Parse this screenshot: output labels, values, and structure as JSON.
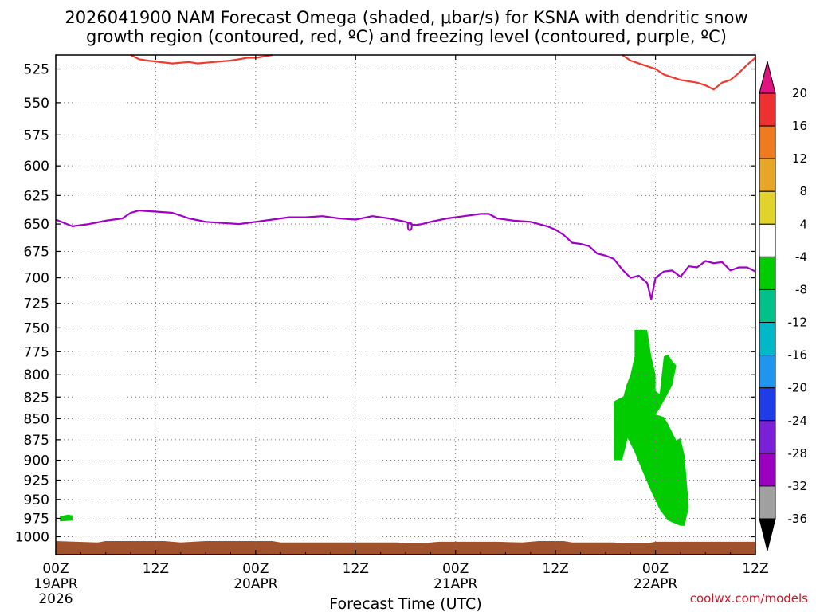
{
  "title_line1": "2026041900 NAM Forecast Omega (shaded, μbar/s) for KSNA with dendritic snow",
  "title_line2": "growth region (contoured, red, ºC) and freezing level (contoured, purple, ºC)",
  "credit": "coolwx.com/models",
  "chart_data": {
    "type": "heatmap",
    "xlabel": "Forecast Time (UTC)",
    "x_ticks": [
      {
        "hour": 0,
        "lines": [
          "00Z",
          "19APR",
          "2026"
        ]
      },
      {
        "hour": 12,
        "lines": [
          "12Z"
        ]
      },
      {
        "hour": 24,
        "lines": [
          "00Z",
          "20APR"
        ]
      },
      {
        "hour": 36,
        "lines": [
          "12Z"
        ]
      },
      {
        "hour": 48,
        "lines": [
          "00Z",
          "21APR"
        ]
      },
      {
        "hour": 60,
        "lines": [
          "12Z"
        ]
      },
      {
        "hour": 72,
        "lines": [
          "00Z",
          "22APR"
        ]
      },
      {
        "hour": 84,
        "lines": [
          "12Z"
        ]
      }
    ],
    "xlim": [
      0,
      84
    ],
    "ylabel": "",
    "y_ticks": [
      525,
      550,
      575,
      600,
      625,
      650,
      675,
      700,
      725,
      750,
      775,
      800,
      825,
      850,
      875,
      900,
      925,
      950,
      975,
      1000
    ],
    "ylim_top": 515,
    "ylim_bottom": 1025,
    "colorbar": {
      "labels": [
        20,
        16,
        12,
        8,
        4,
        -4,
        -8,
        -12,
        -16,
        -20,
        -24,
        -28,
        -32,
        -36
      ],
      "colors": [
        "#ee3030",
        "#f07a1e",
        "#e8a626",
        "#e2d32a",
        "#ffffff",
        "#00cc00",
        "#00c288",
        "#00b8c8",
        "#1e96f0",
        "#1e3ce8",
        "#7a20d8",
        "#9a00c0",
        "#a0a0a0"
      ],
      "top_arrow_color": "#e01480",
      "bottom_arrow_color": "#000000"
    },
    "freezing_level": {
      "color": "#a000c8",
      "points": [
        [
          0,
          646
        ],
        [
          2,
          652
        ],
        [
          4,
          650
        ],
        [
          6,
          647
        ],
        [
          8,
          645
        ],
        [
          9,
          640
        ],
        [
          10,
          638
        ],
        [
          12,
          639
        ],
        [
          14,
          640
        ],
        [
          16,
          645
        ],
        [
          18,
          648
        ],
        [
          20,
          649
        ],
        [
          22,
          650
        ],
        [
          24,
          648
        ],
        [
          26,
          646
        ],
        [
          28,
          644
        ],
        [
          30,
          644
        ],
        [
          32,
          643
        ],
        [
          34,
          645
        ],
        [
          36,
          646
        ],
        [
          38,
          643
        ],
        [
          40,
          645
        ],
        [
          42,
          648
        ],
        [
          43,
          651
        ],
        [
          44,
          650
        ],
        [
          45,
          648
        ],
        [
          47,
          645
        ],
        [
          49,
          643
        ],
        [
          51,
          641
        ],
        [
          52,
          641
        ],
        [
          53,
          645
        ],
        [
          55,
          647
        ],
        [
          57,
          648
        ],
        [
          59,
          652
        ],
        [
          60,
          655
        ],
        [
          61,
          660
        ],
        [
          62,
          667
        ],
        [
          63,
          668
        ],
        [
          64,
          670
        ],
        [
          65,
          677
        ],
        [
          66,
          679
        ],
        [
          67,
          682
        ],
        [
          68,
          692
        ],
        [
          69,
          700
        ],
        [
          70,
          698
        ],
        [
          71,
          705
        ],
        [
          71.5,
          721
        ],
        [
          72,
          700
        ],
        [
          73,
          694
        ],
        [
          74,
          693
        ],
        [
          75,
          699
        ],
        [
          76,
          689
        ],
        [
          77,
          690
        ],
        [
          78,
          684
        ],
        [
          79,
          686
        ],
        [
          80,
          685
        ],
        [
          81,
          693
        ],
        [
          82,
          690
        ],
        [
          83,
          690
        ],
        [
          84,
          694
        ]
      ],
      "loop": {
        "hour": 42.5,
        "level": 652
      }
    },
    "dgz_contours": {
      "color": "#f03a30",
      "segments": [
        [
          [
            9,
            515
          ],
          [
            10,
            518
          ],
          [
            11,
            519
          ],
          [
            14,
            521
          ],
          [
            16,
            520
          ],
          [
            17,
            521
          ],
          [
            19,
            520
          ],
          [
            21,
            519
          ],
          [
            22,
            518
          ],
          [
            23,
            517
          ],
          [
            24,
            517
          ],
          [
            25,
            516
          ],
          [
            26,
            515
          ]
        ],
        [
          [
            68,
            515
          ],
          [
            69,
            519
          ],
          [
            70,
            521
          ],
          [
            72,
            525
          ],
          [
            73,
            529
          ],
          [
            75,
            533
          ],
          [
            77,
            535
          ],
          [
            78,
            537
          ],
          [
            79,
            540
          ],
          [
            80,
            535
          ],
          [
            81,
            533
          ],
          [
            82,
            528
          ],
          [
            83,
            522
          ],
          [
            84,
            517
          ]
        ]
      ]
    },
    "omega_shading": [
      {
        "label": "-8 to -4",
        "color": "#00cc00",
        "polygon": [
          [
            69.5,
            752
          ],
          [
            71,
            752
          ],
          [
            71.5,
            780
          ],
          [
            72,
            800
          ],
          [
            72,
            818
          ],
          [
            72.5,
            822
          ],
          [
            73,
            780
          ],
          [
            73.5,
            778
          ],
          [
            74,
            785
          ],
          [
            74.5,
            790
          ],
          [
            74,
            812
          ],
          [
            72.5,
            838
          ],
          [
            72,
            845
          ],
          [
            73,
            848
          ],
          [
            73.5,
            856
          ],
          [
            74.5,
            876
          ],
          [
            75,
            873
          ],
          [
            75.5,
            895
          ],
          [
            76,
            960
          ],
          [
            75.5,
            985
          ],
          [
            75,
            985
          ],
          [
            73.5,
            978
          ],
          [
            72.5,
            963
          ],
          [
            71.5,
            940
          ],
          [
            70.5,
            915
          ],
          [
            69.5,
            890
          ],
          [
            68.5,
            870
          ],
          [
            68,
            862
          ],
          [
            67.5,
            850
          ],
          [
            68,
            830
          ],
          [
            68.5,
            812
          ],
          [
            69,
            800
          ],
          [
            69.5,
            780
          ]
        ]
      },
      {
        "label": "-8 to -4",
        "color": "#00cc00",
        "polygon": [
          [
            67,
            830
          ],
          [
            68,
            825
          ],
          [
            69,
            820
          ],
          [
            69.5,
            835
          ],
          [
            69,
            858
          ],
          [
            68.5,
            880
          ],
          [
            68,
            900
          ],
          [
            67,
            900
          ]
        ]
      },
      {
        "label": "-8 to -4",
        "color": "#00cc00",
        "polygon": [
          [
            0.5,
            972
          ],
          [
            1.5,
            970
          ],
          [
            2,
            971
          ],
          [
            2,
            978
          ],
          [
            0.5,
            979
          ]
        ]
      }
    ],
    "ground_color": "#a0522d",
    "ground": [
      [
        0,
        1006
      ],
      [
        5,
        1008
      ],
      [
        6,
        1006
      ],
      [
        13,
        1006
      ],
      [
        15,
        1008
      ],
      [
        18,
        1006
      ],
      [
        26,
        1006
      ],
      [
        27,
        1008
      ],
      [
        30,
        1008
      ],
      [
        41,
        1008
      ],
      [
        42,
        1009
      ],
      [
        44,
        1009
      ],
      [
        46,
        1007
      ],
      [
        53,
        1007
      ],
      [
        56,
        1008
      ],
      [
        58,
        1006
      ],
      [
        61,
        1006
      ],
      [
        62,
        1008
      ],
      [
        67,
        1008
      ],
      [
        68,
        1009
      ],
      [
        71,
        1009
      ],
      [
        72,
        1007
      ],
      [
        84,
        1007
      ]
    ]
  }
}
